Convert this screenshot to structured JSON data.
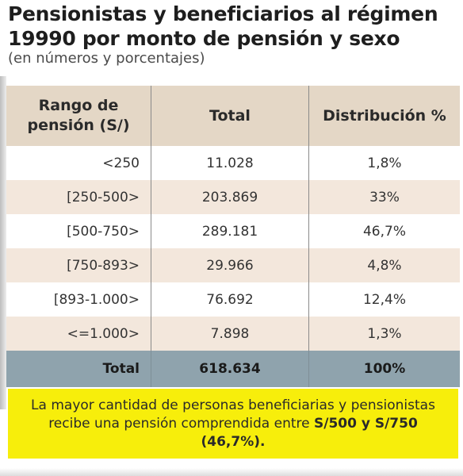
{
  "title": "Pensionistas y beneficiarios al régimen 19990 por monto de pensión y sexo",
  "subtitle": "(en números y porcentajes)",
  "table": {
    "headers": {
      "range": "Rango de pensión (S/)",
      "total": "Total",
      "distribution": "Distribución %"
    },
    "rows": [
      {
        "range": "<250",
        "total": "11.028",
        "distribution": "1,8%"
      },
      {
        "range": "[250-500>",
        "total": "203.869",
        "distribution": "33%"
      },
      {
        "range": "[500-750>",
        "total": "289.181",
        "distribution": "46,7%"
      },
      {
        "range": "[750-893>",
        "total": "29.966",
        "distribution": "4,8%"
      },
      {
        "range": "[893-1.000>",
        "total": "76.692",
        "distribution": "12,4%"
      },
      {
        "range": "<=1.000>",
        "total": "7.898",
        "distribution": "1,3%"
      }
    ],
    "totals": {
      "label": "Total",
      "total": "618.634",
      "distribution": "100%"
    }
  },
  "note": {
    "text": "La mayor cantidad de personas beneficiarias y pensionistas recibe una pensión comprendida entre",
    "highlight": "S/500 y S/750 (46,7%)."
  },
  "colors": {
    "header_bg": "#e4d7c6",
    "stripe_bg": "#f3e7dc",
    "total_bg": "#8fa3ad",
    "note_bg": "#f7ee0b"
  }
}
